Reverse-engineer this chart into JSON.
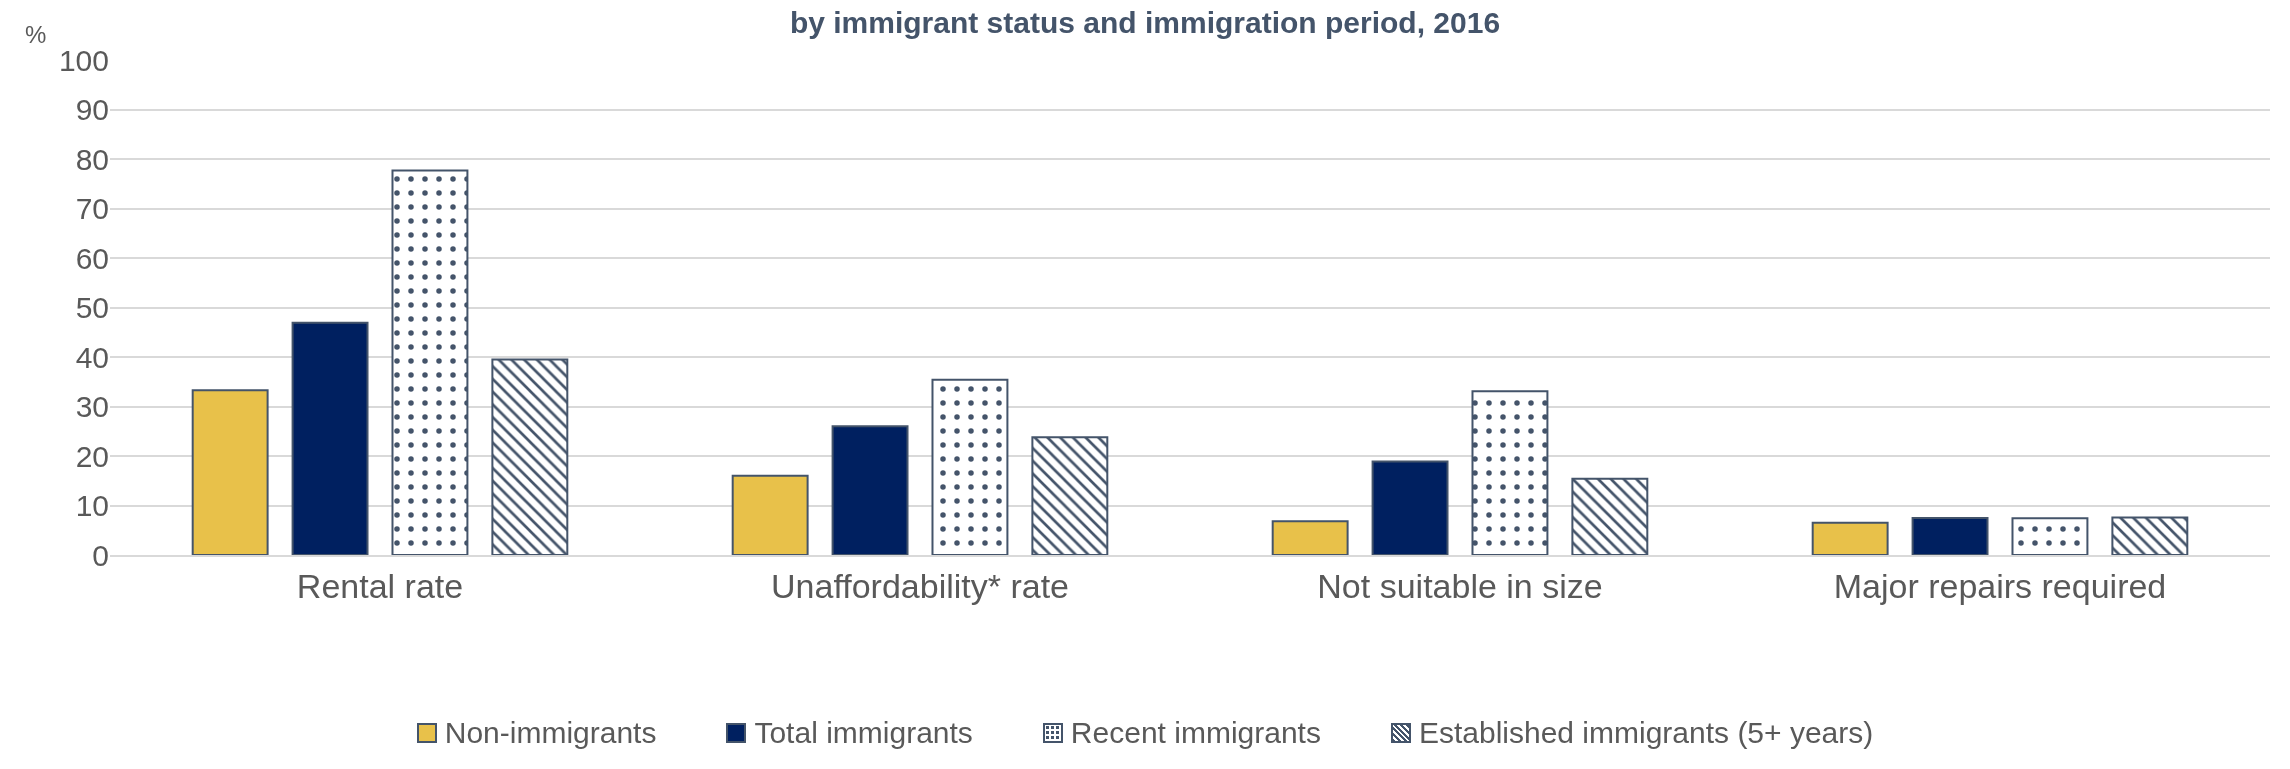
{
  "chart_data": {
    "type": "bar",
    "title": "by immigrant status and immigration period, 2016",
    "ylabel": "%",
    "categories": [
      "Rental rate",
      "Unaffordability* rate",
      "Not suitable in size",
      "Major repairs required"
    ],
    "series": [
      {
        "name": "Non-immigrants",
        "color": "#e8c14a",
        "values": [
          33.3,
          16,
          6.8,
          6.5
        ]
      },
      {
        "name": "Total immigrants",
        "color": "#002060",
        "values": [
          46.9,
          26,
          18.9,
          7.5
        ]
      },
      {
        "name": "Recent immigrants",
        "color": "#44546a",
        "values": [
          77.7,
          35.4,
          33.1,
          7.4
        ]
      },
      {
        "name": "Established immigrants (5+ years)",
        "color": "#44546a",
        "values": [
          39.5,
          23.8,
          15.4,
          7.6
        ]
      }
    ],
    "ylim": [
      0,
      100
    ],
    "yticks": [
      0,
      10,
      20,
      30,
      40,
      50,
      60,
      70,
      80,
      90,
      100
    ],
    "grid": "y",
    "legend": "bottom"
  }
}
